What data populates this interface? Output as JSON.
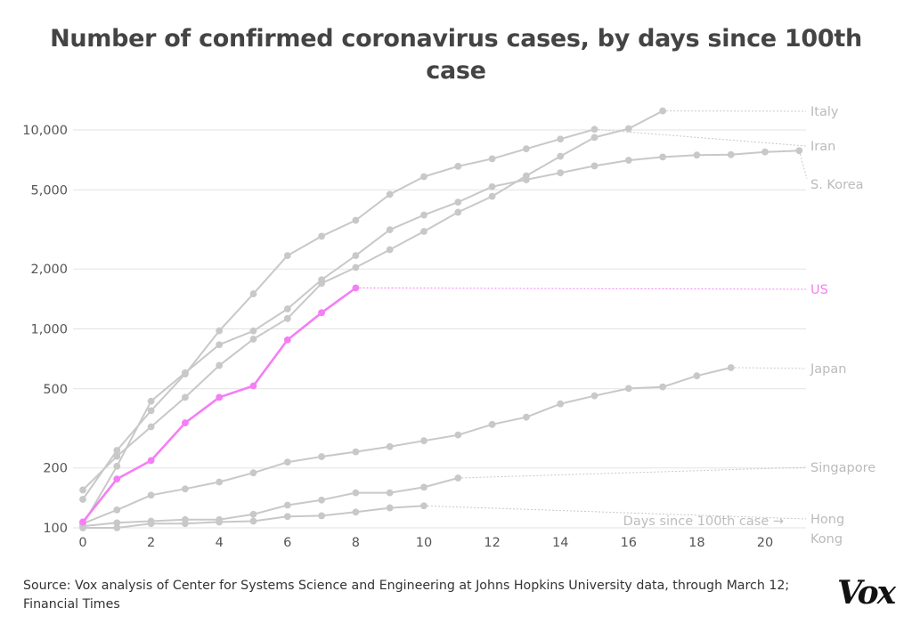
{
  "chart_data": {
    "type": "line",
    "title": "Number of confirmed coronavirus cases, by days since 100th case",
    "source": "Source: Vox analysis of Center for Systems Science and Engineering at Johns Hopkins University data, through March 12; Financial Times",
    "xlabel": "Days since 100th case →",
    "ylabel": "",
    "x_scale": "linear",
    "y_scale": "log",
    "xlim": [
      0,
      21.8
    ],
    "ylim": [
      100,
      14000
    ],
    "x_ticks": [
      0,
      2,
      4,
      6,
      8,
      10,
      12,
      14,
      16,
      18,
      20
    ],
    "y_ticks": [
      100,
      200,
      500,
      1000,
      2000,
      5000,
      10000
    ],
    "y_tick_labels": [
      "100",
      "200",
      "500",
      "1,000",
      "2,000",
      "5,000",
      "10,000"
    ],
    "grid": "horizontal",
    "colors": {
      "highlight": "#f57ef5",
      "other": "#c8c8c8",
      "grid": "#e3e3e3",
      "axis_text": "#555555"
    },
    "series": [
      {
        "name": "Italy",
        "x": [
          0,
          1,
          2,
          3,
          4,
          5,
          6,
          7,
          8,
          9,
          10,
          11,
          12,
          13,
          14,
          15,
          16,
          17
        ],
        "y": [
          155,
          229,
          322,
          453,
          655,
          888,
          1128,
          1694,
          2036,
          2502,
          3089,
          3858,
          4636,
          5883,
          7375,
          9172,
          10149,
          12462
        ]
      },
      {
        "name": "Iran",
        "x": [
          0,
          1,
          2,
          3,
          4,
          5,
          6,
          7,
          8,
          9,
          10,
          11,
          12,
          13,
          14,
          15
        ],
        "y": [
          139,
          245,
          388,
          593,
          978,
          1501,
          2336,
          2922,
          3513,
          4747,
          5823,
          6566,
          7161,
          8042,
          9000,
          10075
        ]
      },
      {
        "name": "S. Korea",
        "x": [
          0,
          1,
          2,
          3,
          4,
          5,
          6,
          7,
          8,
          9,
          10,
          11,
          12,
          13,
          14,
          15,
          16,
          17,
          18,
          19,
          20,
          21
        ],
        "y": [
          104,
          204,
          433,
          602,
          833,
          977,
          1261,
          1766,
          2337,
          3150,
          3736,
          4335,
          5186,
          5621,
          6088,
          6593,
          7041,
          7314,
          7478,
          7513,
          7755,
          7869
        ]
      },
      {
        "name": "US",
        "highlight": true,
        "x": [
          0,
          1,
          2,
          3,
          4,
          5,
          6,
          7,
          8
        ],
        "y": [
          107,
          176,
          218,
          337,
          453,
          517,
          880,
          1206,
          1606
        ]
      },
      {
        "name": "Japan",
        "x": [
          0,
          1,
          2,
          3,
          4,
          5,
          6,
          7,
          8,
          9,
          10,
          11,
          12,
          13,
          14,
          15,
          16,
          17,
          18,
          19
        ],
        "y": [
          105,
          123,
          146,
          157,
          170,
          189,
          214,
          228,
          241,
          256,
          274,
          293,
          331,
          360,
          420,
          461,
          502,
          511,
          581,
          639
        ]
      },
      {
        "name": "Singapore",
        "x": [
          0,
          1,
          2,
          3,
          4,
          5,
          6,
          7,
          8,
          9,
          10,
          11
        ],
        "y": [
          102,
          106,
          108,
          110,
          110,
          117,
          130,
          138,
          150,
          150,
          160,
          178
        ]
      },
      {
        "name": "Hong Kong",
        "x": [
          0,
          1,
          2,
          3,
          4,
          5,
          6,
          7,
          8,
          9,
          10
        ],
        "y": [
          100,
          100,
          105,
          105,
          107,
          108,
          114,
          115,
          120,
          126,
          129
        ]
      }
    ],
    "series_labels": [
      {
        "name": "Italy",
        "end_value": 12462
      },
      {
        "name": "Iran",
        "end_value": 10075
      },
      {
        "name": "S. Korea",
        "end_value": 7869
      },
      {
        "name": "US",
        "end_value": 1606
      },
      {
        "name": "Japan",
        "end_value": 639
      },
      {
        "name": "Singapore",
        "end_value": 178
      },
      {
        "name": "Hong Kong",
        "end_value": 129
      }
    ],
    "publisher": "Vox"
  }
}
